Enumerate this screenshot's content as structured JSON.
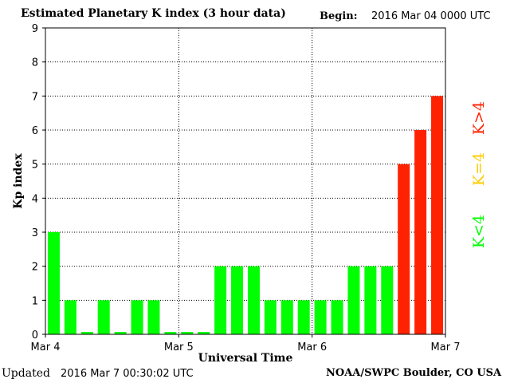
{
  "header": {
    "title": "Estimated Planetary K index (3 hour data)",
    "begin_label": "Begin:",
    "begin_value": "2016 Mar 04 0000 UTC"
  },
  "footer": {
    "updated_label": "Updated",
    "updated_value": "2016 Mar  7 00:30:02 UTC",
    "credit": "NOAA/SWPC Boulder, CO USA"
  },
  "chart_data": {
    "type": "bar",
    "title": "Estimated Planetary K index (3 hour data)",
    "xlabel": "Universal Time",
    "ylabel": "Kp index",
    "ylim": [
      0,
      9
    ],
    "yticks": [
      0,
      1,
      2,
      3,
      4,
      5,
      6,
      7,
      8,
      9
    ],
    "xtick_labels": [
      "Mar 4",
      "Mar 5",
      "Mar 6",
      "Mar 7"
    ],
    "grid": true,
    "values": [
      3,
      1,
      0.07,
      1,
      0.07,
      1,
      1,
      0.07,
      0.07,
      0.07,
      2,
      2,
      2,
      1,
      1,
      1,
      1,
      1,
      2,
      2,
      2,
      5,
      6,
      7
    ],
    "colors": {
      "below4": "#00ff00",
      "equal4": "#ffcc00",
      "above4": "#ff2200"
    },
    "legend": [
      {
        "label": "K<4",
        "color": "#00ff00"
      },
      {
        "label": "K=4",
        "color": "#ffcc00"
      },
      {
        "label": "K>4",
        "color": "#ff2200"
      }
    ]
  }
}
